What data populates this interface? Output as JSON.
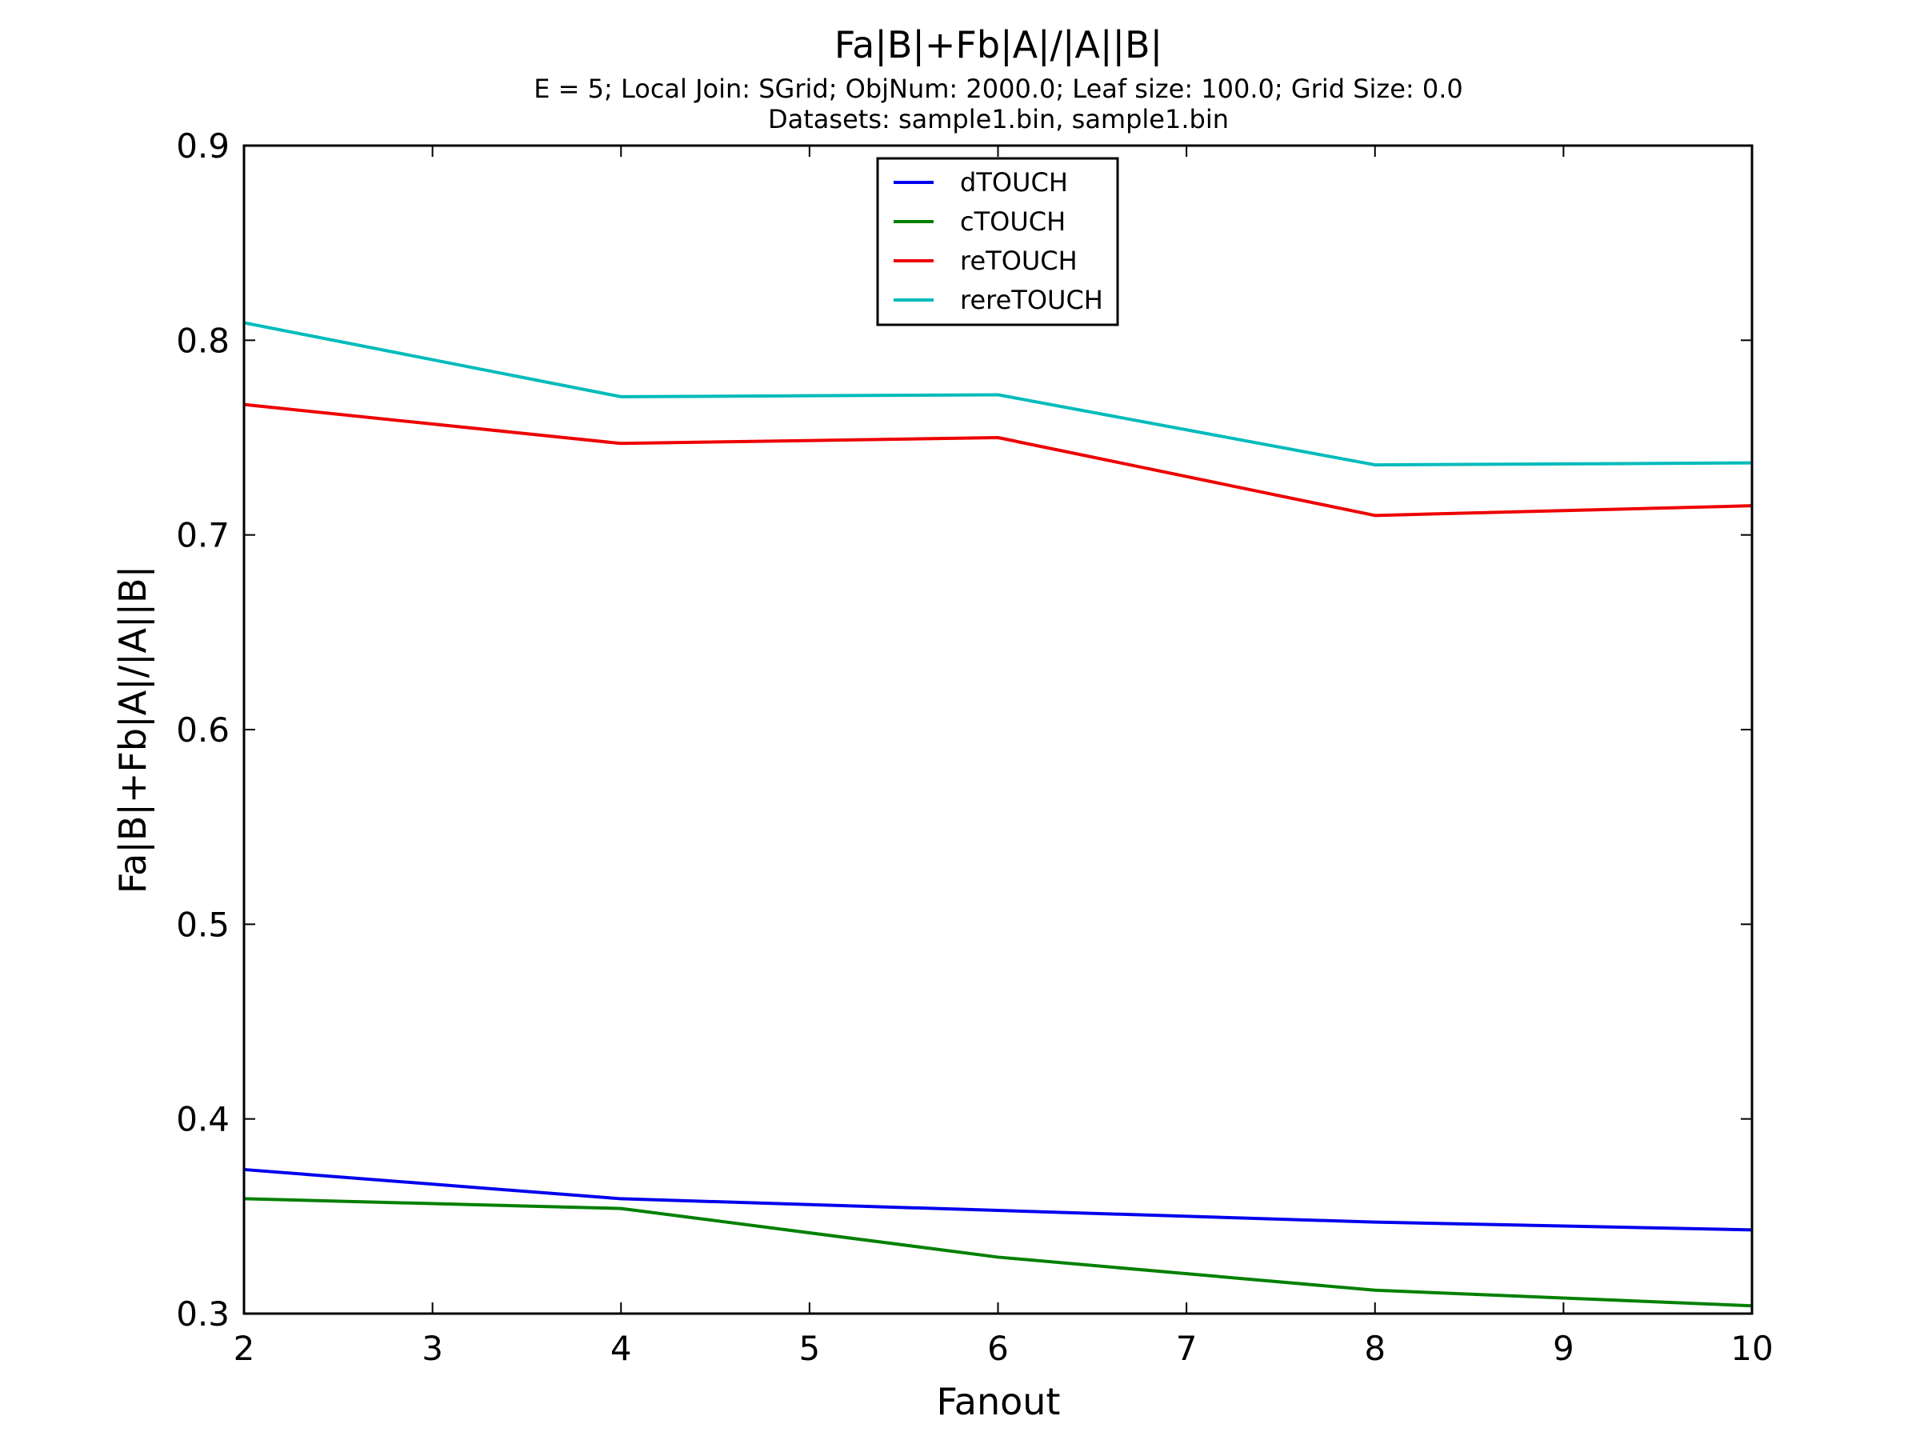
{
  "chart_data": {
    "type": "line",
    "title": "Fa|B|+Fb|A|/|A||B|",
    "subtitle_lines": [
      "E = 5; Local Join: SGrid; ObjNum: 2000.0; Leaf size: 100.0; Grid Size: 0.0",
      "Datasets: sample1.bin, sample1.bin"
    ],
    "xlabel": "Fanout",
    "ylabel": "Fa|B|+Fb|A|/|A||B|",
    "xlim": [
      2,
      10
    ],
    "ylim": [
      0.3,
      0.9
    ],
    "xticks": [
      2,
      3,
      4,
      5,
      6,
      7,
      8,
      9,
      10
    ],
    "xtick_labels": [
      "2",
      "3",
      "4",
      "5",
      "6",
      "7",
      "8",
      "9",
      "10"
    ],
    "yticks": [
      0.3,
      0.4,
      0.5,
      0.6,
      0.7,
      0.8,
      0.9
    ],
    "ytick_labels": [
      "0.3",
      "0.4",
      "0.5",
      "0.6",
      "0.7",
      "0.8",
      "0.9"
    ],
    "grid": false,
    "legend_position": "top-center",
    "x": [
      2,
      4,
      6,
      8,
      10
    ],
    "series": [
      {
        "name": "dTOUCH",
        "color": "#0000ee",
        "values": [
          0.374,
          0.359,
          0.353,
          0.347,
          0.343
        ]
      },
      {
        "name": "cTOUCH",
        "color": "#008000",
        "values": [
          0.359,
          0.354,
          0.329,
          0.312,
          0.304
        ]
      },
      {
        "name": "reTOUCH",
        "color": "#ee0000",
        "values": [
          0.767,
          0.747,
          0.75,
          0.71,
          0.715
        ]
      },
      {
        "name": "rereTOUCH",
        "color": "#00bbbb",
        "values": [
          0.809,
          0.771,
          0.772,
          0.736,
          0.737
        ]
      }
    ]
  }
}
